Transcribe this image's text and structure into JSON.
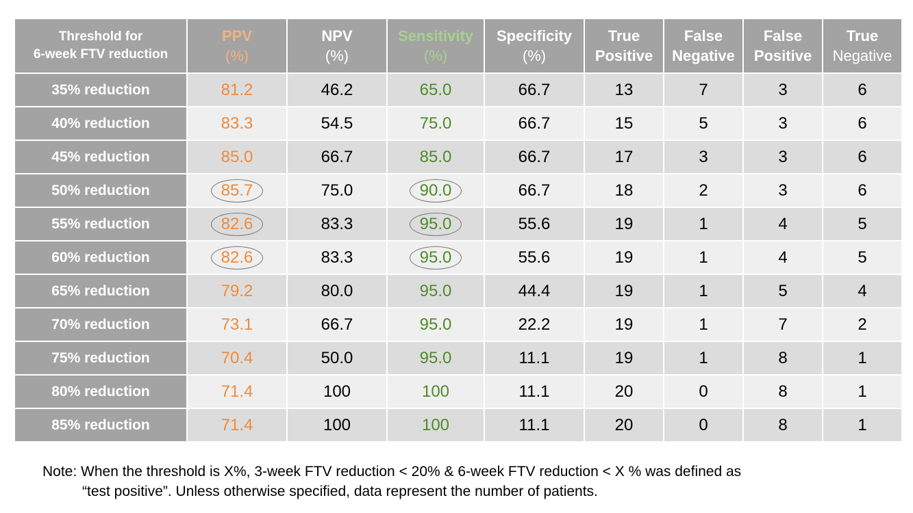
{
  "colors": {
    "header_bg": "#a3a3a3",
    "ppv": "#f08a3c",
    "ppv_header": "#f4b183",
    "sensitivity": "#4e8b2a",
    "sensitivity_header": "#a9d18e",
    "row_odd": "#dcdcdc",
    "row_even": "#efefef"
  },
  "table": {
    "headers": {
      "threshold": {
        "line1": "Threshold for",
        "line2": "6-week FTV reduction"
      },
      "ppv": {
        "line1": "PPV",
        "line2": "(%)"
      },
      "npv": {
        "line1": "NPV",
        "line2": "(%)"
      },
      "sensitivity": {
        "line1": "Sensitivity",
        "line2": "(%)"
      },
      "specificity": {
        "line1": "Specificity",
        "line2": "(%)"
      },
      "tp": {
        "line1": "True",
        "line2": "Positive"
      },
      "fn": {
        "line1": "False",
        "line2": "Negative"
      },
      "fp": {
        "line1": "False",
        "line2": "Positive"
      },
      "tn": {
        "line1": "True",
        "line2": "Negative"
      }
    },
    "rows": [
      {
        "threshold": "35% reduction",
        "ppv": "81.2",
        "npv": "46.2",
        "sensitivity": "65.0",
        "specificity": "66.7",
        "tp": "13",
        "fn": "7",
        "fp": "3",
        "tn": "6",
        "highlight": false
      },
      {
        "threshold": "40% reduction",
        "ppv": "83.3",
        "npv": "54.5",
        "sensitivity": "75.0",
        "specificity": "66.7",
        "tp": "15",
        "fn": "5",
        "fp": "3",
        "tn": "6",
        "highlight": false
      },
      {
        "threshold": "45% reduction",
        "ppv": "85.0",
        "npv": "66.7",
        "sensitivity": "85.0",
        "specificity": "66.7",
        "tp": "17",
        "fn": "3",
        "fp": "3",
        "tn": "6",
        "highlight": false
      },
      {
        "threshold": "50% reduction",
        "ppv": "85.7",
        "npv": "75.0",
        "sensitivity": "90.0",
        "specificity": "66.7",
        "tp": "18",
        "fn": "2",
        "fp": "3",
        "tn": "6",
        "highlight": true
      },
      {
        "threshold": "55% reduction",
        "ppv": "82.6",
        "npv": "83.3",
        "sensitivity": "95.0",
        "specificity": "55.6",
        "tp": "19",
        "fn": "1",
        "fp": "4",
        "tn": "5",
        "highlight": true
      },
      {
        "threshold": "60% reduction",
        "ppv": "82.6",
        "npv": "83.3",
        "sensitivity": "95.0",
        "specificity": "55.6",
        "tp": "19",
        "fn": "1",
        "fp": "4",
        "tn": "5",
        "highlight": true
      },
      {
        "threshold": "65% reduction",
        "ppv": "79.2",
        "npv": "80.0",
        "sensitivity": "95.0",
        "specificity": "44.4",
        "tp": "19",
        "fn": "1",
        "fp": "5",
        "tn": "4",
        "highlight": false
      },
      {
        "threshold": "70% reduction",
        "ppv": "73.1",
        "npv": "66.7",
        "sensitivity": "95.0",
        "specificity": "22.2",
        "tp": "19",
        "fn": "1",
        "fp": "7",
        "tn": "2",
        "highlight": false
      },
      {
        "threshold": "75% reduction",
        "ppv": "70.4",
        "npv": "50.0",
        "sensitivity": "95.0",
        "specificity": "11.1",
        "tp": "19",
        "fn": "1",
        "fp": "8",
        "tn": "1",
        "highlight": false
      },
      {
        "threshold": "80% reduction",
        "ppv": "71.4",
        "npv": "100",
        "sensitivity": "100",
        "specificity": "11.1",
        "tp": "20",
        "fn": "0",
        "fp": "8",
        "tn": "1",
        "highlight": false
      },
      {
        "threshold": "85% reduction",
        "ppv": "71.4",
        "npv": "100",
        "sensitivity": "100",
        "specificity": "11.1",
        "tp": "20",
        "fn": "0",
        "fp": "8",
        "tn": "1",
        "highlight": false
      }
    ]
  },
  "note": {
    "line1": "Note: When the threshold is X%, 3-week FTV reduction < 20% & 6-week FTV reduction < X % was defined as",
    "line2": "“test positive”. Unless otherwise specified, data represent the number of patients."
  }
}
